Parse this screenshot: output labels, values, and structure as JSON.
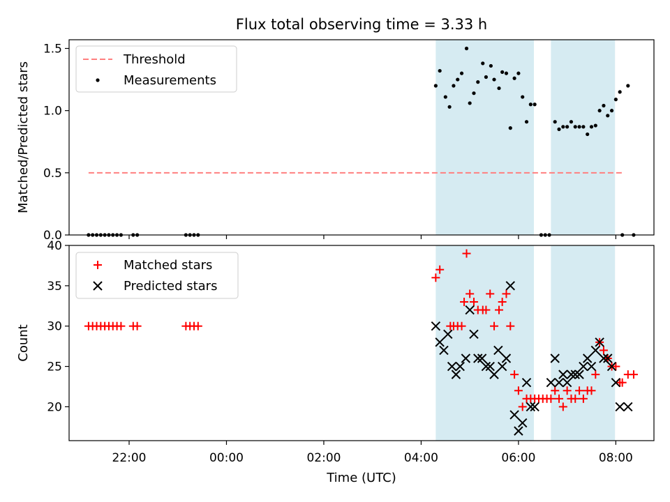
{
  "chart_data": [
    {
      "type": "scatter",
      "title": "Flux total observing time = 3.33 h",
      "ylabel": "Matched/Predicted stars",
      "xlim": [
        "20:46",
        "08:47"
      ],
      "ylim": [
        0,
        1.57
      ],
      "yticks": [
        "0.0",
        "0.5",
        "1.0",
        "1.5"
      ],
      "shaded_intervals": [
        [
          "04:18",
          "06:19"
        ],
        [
          "06:40",
          "07:59"
        ]
      ],
      "shade_color": "#add8e6",
      "legend_position": "upper-left",
      "threshold": {
        "name": "Threshold",
        "style": "dashed",
        "color": "#ff7f7f",
        "x": [
          "21:10",
          "08:08"
        ],
        "y": 0.5
      },
      "series": [
        {
          "name": "Measurements",
          "color": "#000000",
          "marker": "dot",
          "points": [
            [
              "21:10",
              0.0
            ],
            [
              "21:15",
              0.0
            ],
            [
              "21:20",
              0.0
            ],
            [
              "21:25",
              0.0
            ],
            [
              "21:30",
              0.0
            ],
            [
              "21:35",
              0.0
            ],
            [
              "21:40",
              0.0
            ],
            [
              "21:45",
              0.0
            ],
            [
              "21:50",
              0.0
            ],
            [
              "22:05",
              0.0
            ],
            [
              "22:10",
              0.0
            ],
            [
              "23:10",
              0.0
            ],
            [
              "23:15",
              0.0
            ],
            [
              "23:20",
              0.0
            ],
            [
              "23:25",
              0.0
            ],
            [
              "04:18",
              1.2
            ],
            [
              "04:23",
              1.32
            ],
            [
              "04:30",
              1.11
            ],
            [
              "04:35",
              1.03
            ],
            [
              "04:40",
              1.2
            ],
            [
              "04:45",
              1.25
            ],
            [
              "04:50",
              1.3
            ],
            [
              "04:56",
              1.5
            ],
            [
              "05:00",
              1.06
            ],
            [
              "05:05",
              1.14
            ],
            [
              "05:10",
              1.23
            ],
            [
              "05:16",
              1.38
            ],
            [
              "05:20",
              1.27
            ],
            [
              "05:26",
              1.36
            ],
            [
              "05:30",
              1.25
            ],
            [
              "05:36",
              1.18
            ],
            [
              "05:40",
              1.31
            ],
            [
              "05:45",
              1.3
            ],
            [
              "05:50",
              0.86
            ],
            [
              "05:55",
              1.26
            ],
            [
              "06:00",
              1.3
            ],
            [
              "06:05",
              1.11
            ],
            [
              "06:10",
              0.91
            ],
            [
              "06:15",
              1.05
            ],
            [
              "06:20",
              1.05
            ],
            [
              "06:28",
              0.0
            ],
            [
              "06:33",
              0.0
            ],
            [
              "06:38",
              0.0
            ],
            [
              "06:45",
              0.91
            ],
            [
              "06:50",
              0.85
            ],
            [
              "06:55",
              0.87
            ],
            [
              "07:00",
              0.87
            ],
            [
              "07:05",
              0.91
            ],
            [
              "07:10",
              0.87
            ],
            [
              "07:15",
              0.87
            ],
            [
              "07:20",
              0.87
            ],
            [
              "07:25",
              0.81
            ],
            [
              "07:30",
              0.87
            ],
            [
              "07:35",
              0.88
            ],
            [
              "07:40",
              1.0
            ],
            [
              "07:45",
              1.04
            ],
            [
              "07:50",
              0.96
            ],
            [
              "07:55",
              1.0
            ],
            [
              "08:00",
              1.09
            ],
            [
              "08:05",
              1.15
            ],
            [
              "08:08",
              0.0
            ],
            [
              "08:15",
              1.2
            ],
            [
              "08:22",
              0.0
            ]
          ]
        }
      ]
    },
    {
      "type": "scatter",
      "xlabel": "Time (UTC)",
      "ylabel": "Count",
      "xlim": [
        "20:46",
        "08:47"
      ],
      "ylim": [
        15.8,
        40
      ],
      "xticks": [
        "22:00",
        "00:00",
        "02:00",
        "04:00",
        "06:00",
        "08:00"
      ],
      "yticks": [
        "20",
        "25",
        "30",
        "35",
        "40"
      ],
      "shaded_intervals": [
        [
          "04:18",
          "06:19"
        ],
        [
          "06:40",
          "07:59"
        ]
      ],
      "shade_color": "#add8e6",
      "legend_position": "upper-left",
      "series": [
        {
          "name": "Matched stars",
          "color": "#ff0000",
          "marker": "plus",
          "points": [
            [
              "21:10",
              30
            ],
            [
              "21:15",
              30
            ],
            [
              "21:20",
              30
            ],
            [
              "21:25",
              30
            ],
            [
              "21:30",
              30
            ],
            [
              "21:35",
              30
            ],
            [
              "21:40",
              30
            ],
            [
              "21:45",
              30
            ],
            [
              "21:50",
              30
            ],
            [
              "22:05",
              30
            ],
            [
              "22:10",
              30
            ],
            [
              "23:10",
              30
            ],
            [
              "23:15",
              30
            ],
            [
              "23:20",
              30
            ],
            [
              "23:25",
              30
            ],
            [
              "04:18",
              36
            ],
            [
              "04:23",
              37
            ],
            [
              "04:36",
              30
            ],
            [
              "04:40",
              30
            ],
            [
              "04:45",
              30
            ],
            [
              "04:50",
              30
            ],
            [
              "04:53",
              33
            ],
            [
              "04:56",
              39
            ],
            [
              "05:00",
              34
            ],
            [
              "05:05",
              33
            ],
            [
              "05:10",
              32
            ],
            [
              "05:16",
              32
            ],
            [
              "05:20",
              32
            ],
            [
              "05:25",
              34
            ],
            [
              "05:30",
              30
            ],
            [
              "05:36",
              32
            ],
            [
              "05:40",
              33
            ],
            [
              "05:45",
              34
            ],
            [
              "05:50",
              30
            ],
            [
              "05:55",
              24
            ],
            [
              "06:00",
              22
            ],
            [
              "06:05",
              20
            ],
            [
              "06:10",
              21
            ],
            [
              "06:15",
              21
            ],
            [
              "06:20",
              21
            ],
            [
              "06:25",
              21
            ],
            [
              "06:30",
              21
            ],
            [
              "06:35",
              21
            ],
            [
              "06:40",
              21
            ],
            [
              "06:45",
              22
            ],
            [
              "06:50",
              21
            ],
            [
              "06:55",
              20
            ],
            [
              "07:00",
              22
            ],
            [
              "07:05",
              21
            ],
            [
              "07:10",
              21
            ],
            [
              "07:15",
              22
            ],
            [
              "07:20",
              21
            ],
            [
              "07:25",
              22
            ],
            [
              "07:30",
              22
            ],
            [
              "07:35",
              24
            ],
            [
              "07:40",
              28
            ],
            [
              "07:45",
              27
            ],
            [
              "07:50",
              26
            ],
            [
              "07:55",
              25
            ],
            [
              "08:00",
              25
            ],
            [
              "08:05",
              23
            ],
            [
              "08:08",
              23
            ],
            [
              "08:15",
              24
            ],
            [
              "08:22",
              24
            ]
          ]
        },
        {
          "name": "Predicted stars",
          "color": "#000000",
          "marker": "x",
          "points": [
            [
              "04:18",
              30
            ],
            [
              "04:23",
              28
            ],
            [
              "04:28",
              27
            ],
            [
              "04:33",
              29
            ],
            [
              "04:38",
              25
            ],
            [
              "04:43",
              24
            ],
            [
              "04:48",
              25
            ],
            [
              "04:55",
              26
            ],
            [
              "05:00",
              32
            ],
            [
              "05:05",
              29
            ],
            [
              "05:10",
              26
            ],
            [
              "05:15",
              26
            ],
            [
              "05:20",
              25
            ],
            [
              "05:25",
              25
            ],
            [
              "05:30",
              24
            ],
            [
              "05:35",
              27
            ],
            [
              "05:40",
              25
            ],
            [
              "05:45",
              26
            ],
            [
              "05:50",
              35
            ],
            [
              "05:55",
              19
            ],
            [
              "06:00",
              17
            ],
            [
              "06:05",
              18
            ],
            [
              "06:10",
              23
            ],
            [
              "06:15",
              20
            ],
            [
              "06:20",
              20
            ],
            [
              "06:40",
              23
            ],
            [
              "06:45",
              26
            ],
            [
              "06:50",
              23
            ],
            [
              "06:55",
              24
            ],
            [
              "07:00",
              23
            ],
            [
              "07:05",
              24
            ],
            [
              "07:10",
              24
            ],
            [
              "07:15",
              24
            ],
            [
              "07:20",
              25
            ],
            [
              "07:25",
              26
            ],
            [
              "07:30",
              25
            ],
            [
              "07:35",
              27
            ],
            [
              "07:40",
              28
            ],
            [
              "07:45",
              26
            ],
            [
              "07:50",
              26
            ],
            [
              "07:55",
              25
            ],
            [
              "08:00",
              23
            ],
            [
              "08:05",
              20
            ],
            [
              "08:15",
              20
            ]
          ]
        }
      ]
    }
  ]
}
